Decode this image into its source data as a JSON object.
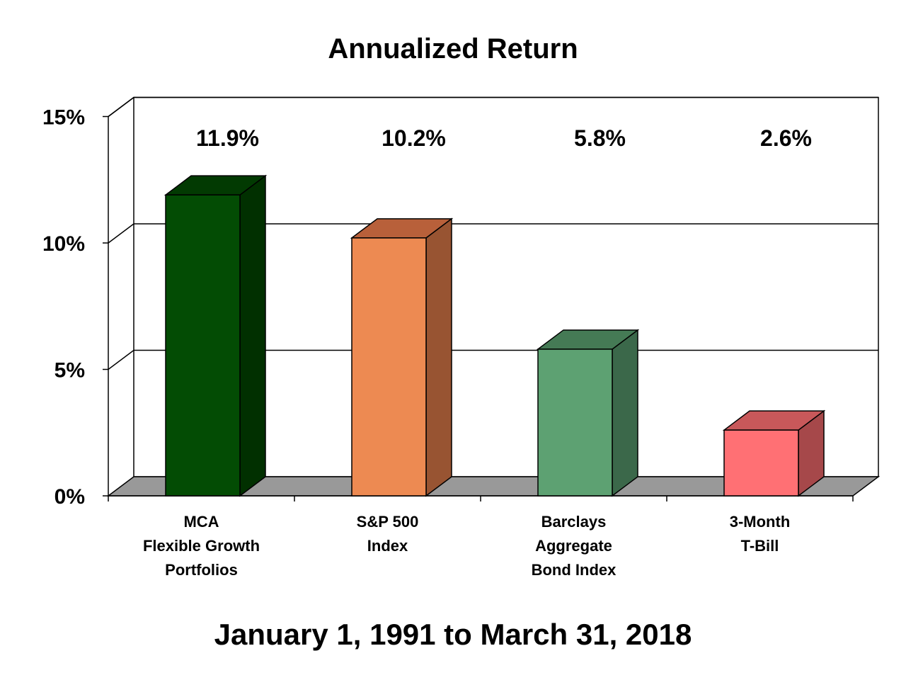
{
  "chart_data": {
    "type": "bar",
    "title": "Annualized Return",
    "subtitle": "January 1, 1991 to March 31, 2018",
    "categories": [
      [
        "MCA",
        "Flexible Growth",
        "Portfolios"
      ],
      [
        "S&P 500",
        "Index"
      ],
      [
        "Barclays",
        "Aggregate",
        "Bond Index"
      ],
      [
        "3-Month",
        "T-Bill"
      ]
    ],
    "values": [
      11.9,
      10.2,
      5.8,
      2.6
    ],
    "value_labels": [
      "11.9%",
      "10.2%",
      "5.8%",
      "2.6%"
    ],
    "bar_colors": [
      {
        "front": "#034c04",
        "top": "#023a02",
        "side": "#013000"
      },
      {
        "front": "#ed8a52",
        "top": "#b8603a",
        "side": "#985432"
      },
      {
        "front": "#5da172",
        "top": "#457a55",
        "side": "#3b684a"
      },
      {
        "front": "#ff7074",
        "top": "#c8585a",
        "side": "#a6484a"
      }
    ],
    "ylim": [
      0,
      15
    ],
    "yticks": [
      "0%",
      "5%",
      "10%",
      "15%"
    ],
    "ytick_values": [
      0,
      5,
      10,
      15
    ],
    "grid": true,
    "three_d": true,
    "floor_color": "#999999"
  }
}
